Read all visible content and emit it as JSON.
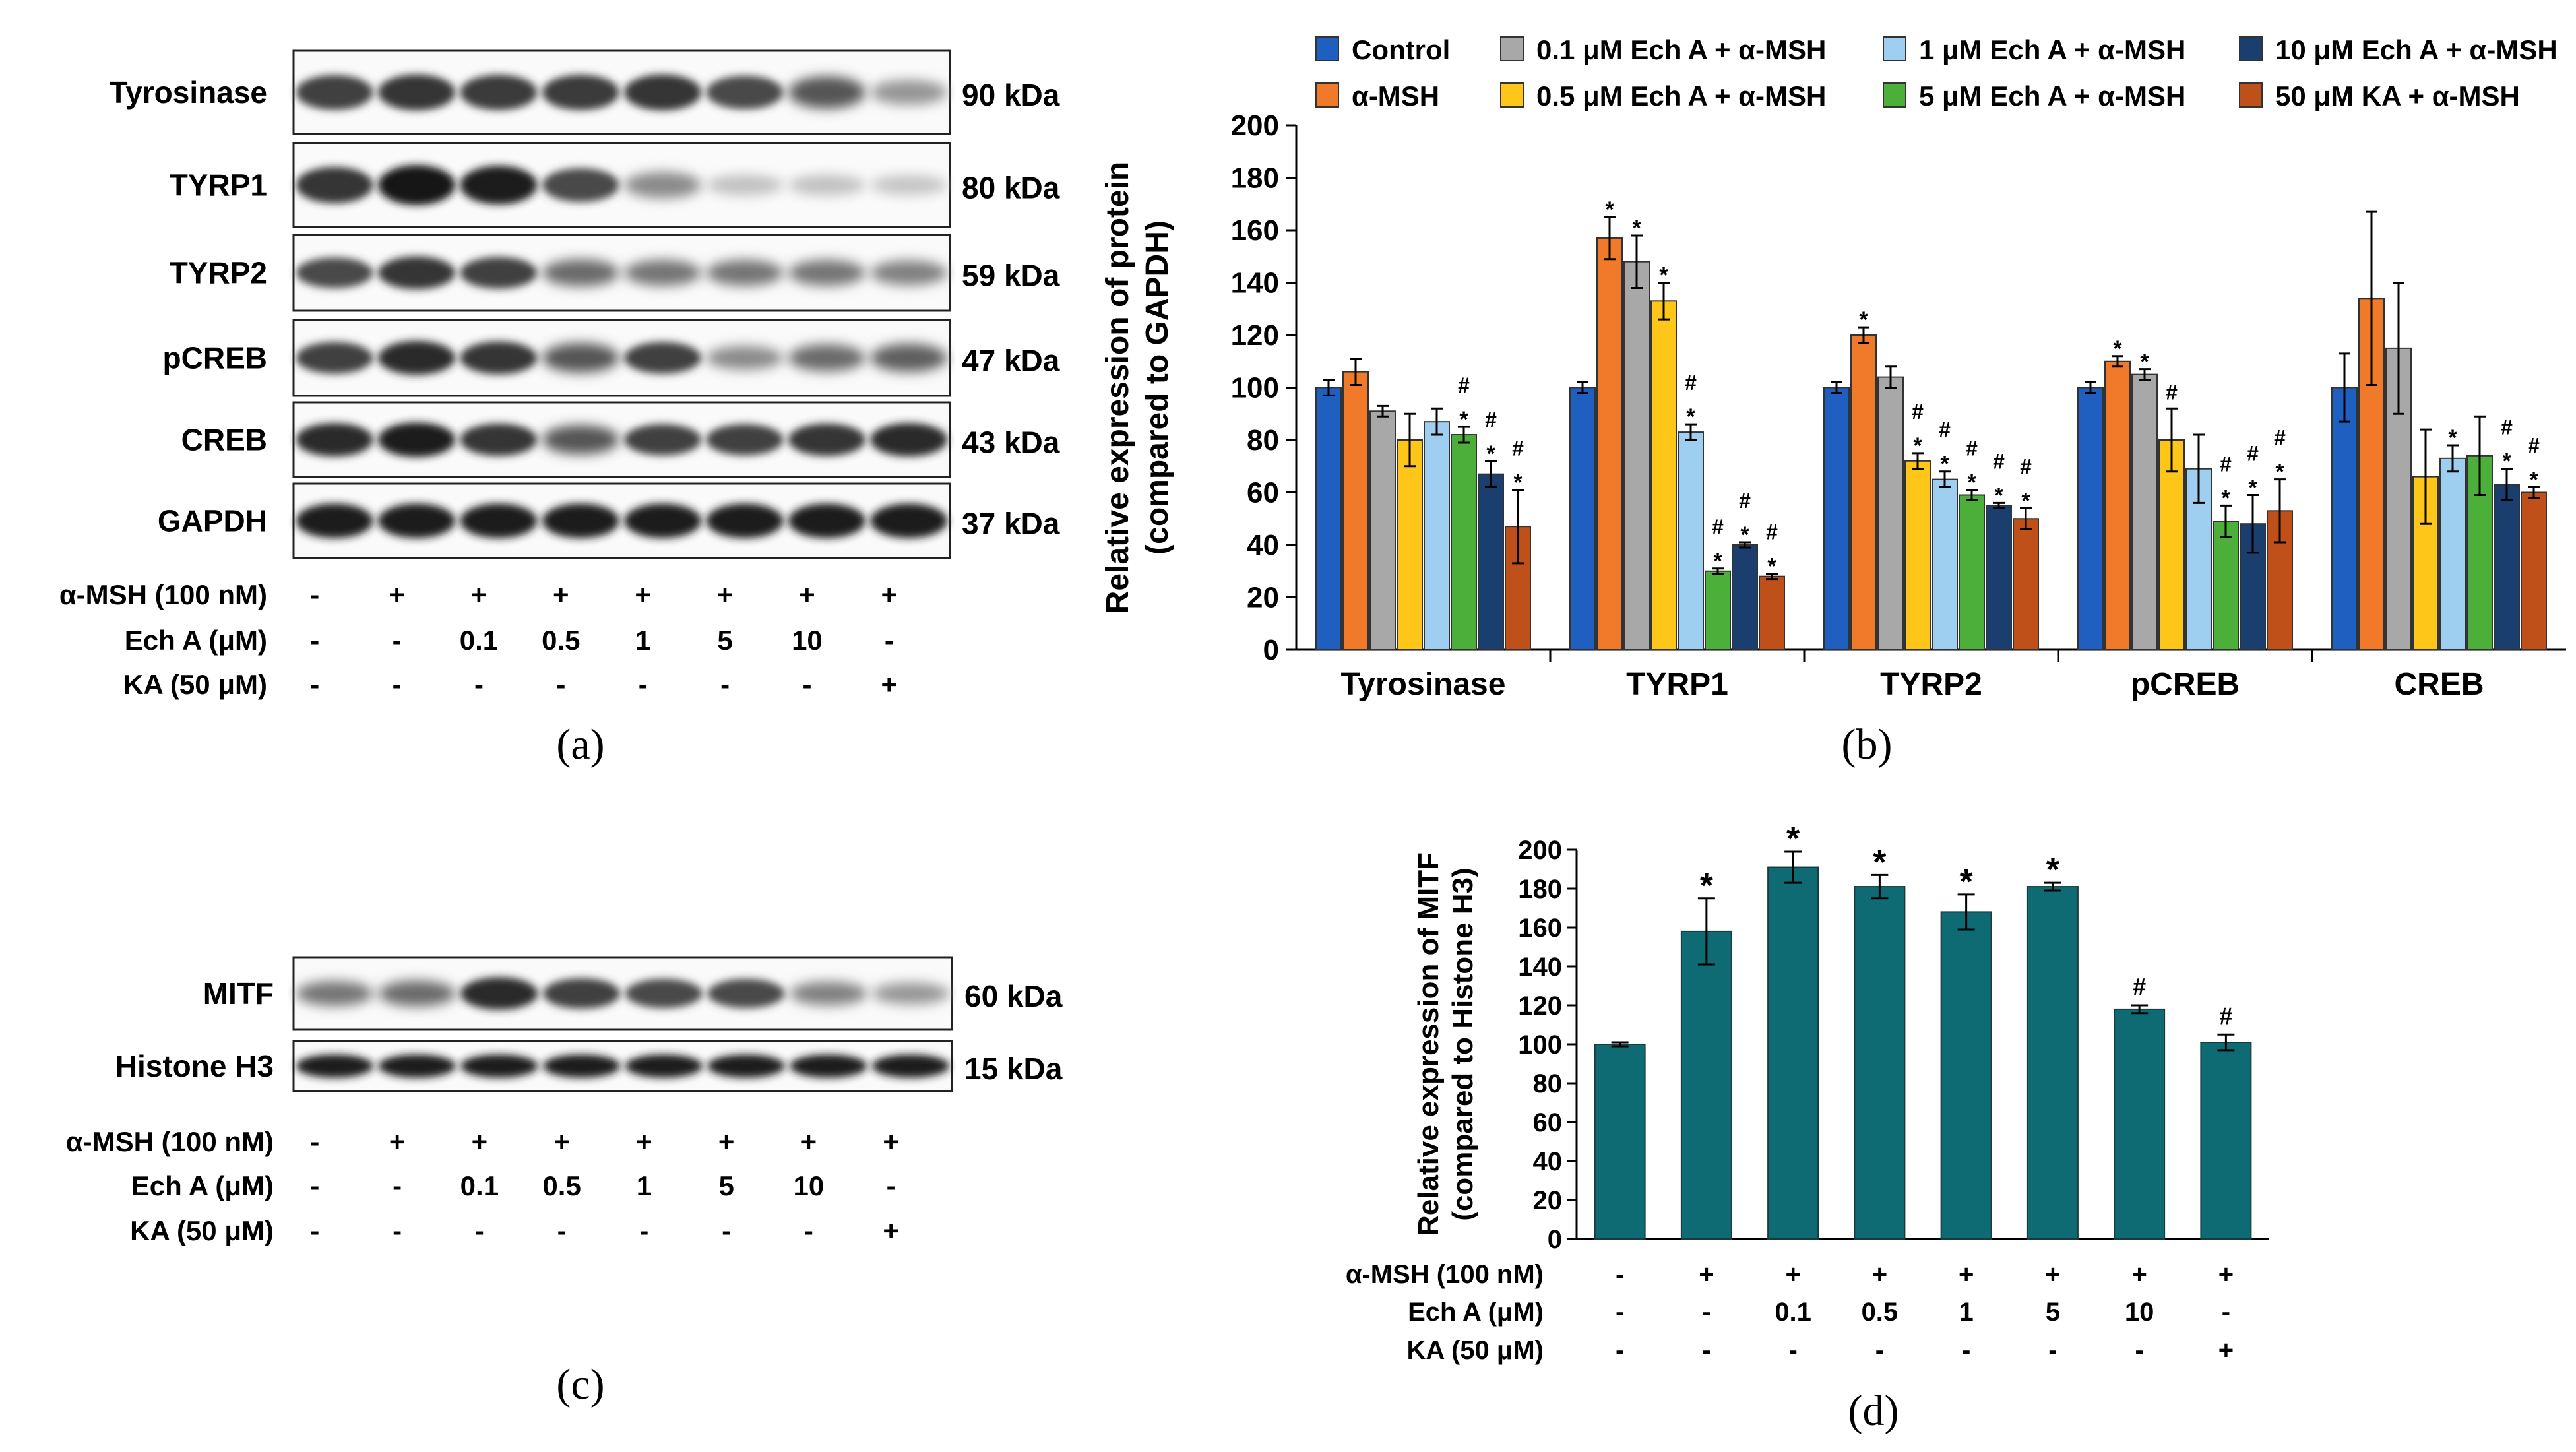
{
  "panel_a": {
    "letter": "(a)",
    "bands": [
      {
        "name": "Tyrosinase",
        "kda": "90 kDa",
        "intensity": [
          0.8,
          0.85,
          0.82,
          0.82,
          0.85,
          0.75,
          0.7,
          0.4
        ]
      },
      {
        "name": "TYRP1",
        "kda": "80 kDa",
        "intensity": [
          0.85,
          1.0,
          0.95,
          0.75,
          0.45,
          0.2,
          0.2,
          0.18
        ]
      },
      {
        "name": "TYRP2",
        "kda": "59 kDa",
        "intensity": [
          0.75,
          0.85,
          0.8,
          0.6,
          0.55,
          0.55,
          0.55,
          0.5
        ]
      },
      {
        "name": "pCREB",
        "kda": "47 kDa",
        "intensity": [
          0.8,
          0.9,
          0.85,
          0.7,
          0.8,
          0.45,
          0.6,
          0.65
        ]
      },
      {
        "name": "CREB",
        "kda": "43 kDa",
        "intensity": [
          0.9,
          0.95,
          0.85,
          0.7,
          0.8,
          0.8,
          0.85,
          0.9
        ]
      },
      {
        "name": "GAPDH",
        "kda": "37 kDa",
        "intensity": [
          0.95,
          0.95,
          0.95,
          0.95,
          0.95,
          0.95,
          0.95,
          0.95
        ]
      }
    ],
    "treatments": [
      {
        "label": "α-MSH (100 nM)",
        "values": [
          "-",
          "+",
          "+",
          "+",
          "+",
          "+",
          "+",
          "+"
        ]
      },
      {
        "label": "Ech A (μM)",
        "values": [
          "-",
          "-",
          "0.1",
          "0.5",
          "1",
          "5",
          "10",
          "-"
        ]
      },
      {
        "label": "KA (50 μM)",
        "values": [
          "-",
          "-",
          "-",
          "-",
          "-",
          "-",
          "-",
          "+"
        ]
      }
    ]
  },
  "panel_c": {
    "letter": "(c)",
    "bands": [
      {
        "name": "MITF",
        "kda": "60 kDa",
        "intensity": [
          0.55,
          0.6,
          0.9,
          0.8,
          0.75,
          0.75,
          0.5,
          0.4
        ]
      },
      {
        "name": "Histone H3",
        "kda": "15 kDa",
        "intensity": [
          0.95,
          0.95,
          0.95,
          0.95,
          0.95,
          0.95,
          0.95,
          0.95
        ]
      }
    ],
    "treatments": [
      {
        "label": "α-MSH (100 nM)",
        "values": [
          "-",
          "+",
          "+",
          "+",
          "+",
          "+",
          "+",
          "+"
        ]
      },
      {
        "label": "Ech A (μM)",
        "values": [
          "-",
          "-",
          "0.1",
          "0.5",
          "1",
          "5",
          "10",
          "-"
        ]
      },
      {
        "label": "KA (50 μM)",
        "values": [
          "-",
          "-",
          "-",
          "-",
          "-",
          "-",
          "-",
          "+"
        ]
      }
    ]
  },
  "chart_data": [
    {
      "type": "bar",
      "panel": "(b)",
      "title": "",
      "xlabel": "",
      "ylabel_line1": "Relative expression of protein",
      "ylabel_line2": "(compared to GAPDH)",
      "ylim": [
        0,
        200
      ],
      "yticks": [
        0,
        20,
        40,
        60,
        80,
        100,
        120,
        140,
        160,
        180,
        200
      ],
      "categories": [
        "Tyrosinase",
        "TYRP1",
        "TYRP2",
        "pCREB",
        "CREB"
      ],
      "legend_position": "top",
      "series": [
        {
          "name": "Control",
          "color": "#1f5fc0",
          "values": [
            100,
            100,
            100,
            100,
            100
          ],
          "errors": [
            3,
            2,
            2,
            2,
            13
          ],
          "marks": [
            "",
            "",
            "",
            "",
            ""
          ]
        },
        {
          "name": "α-MSH",
          "color": "#f07a2a",
          "values": [
            106,
            157,
            120,
            110,
            134
          ],
          "errors": [
            5,
            8,
            3,
            2,
            33
          ],
          "marks": [
            "",
            "*",
            "*",
            "*",
            ""
          ]
        },
        {
          "name": "0.1 μM Ech A + α-MSH",
          "color": "#a8a8a8",
          "values": [
            91,
            148,
            104,
            105,
            115
          ],
          "errors": [
            2,
            10,
            4,
            2,
            25
          ],
          "marks": [
            "",
            "*",
            "",
            "*",
            ""
          ]
        },
        {
          "name": "0.5 μM Ech A + α-MSH",
          "color": "#ffc61a",
          "values": [
            80,
            133,
            72,
            80,
            66
          ],
          "errors": [
            10,
            7,
            3,
            12,
            18
          ],
          "marks": [
            "",
            "*",
            "*#",
            "#",
            ""
          ]
        },
        {
          "name": "1 μM Ech A + α-MSH",
          "color": "#9fcff0",
          "values": [
            87,
            83,
            65,
            69,
            73
          ],
          "errors": [
            5,
            3,
            3,
            13,
            5
          ],
          "marks": [
            "",
            "*#",
            "*#",
            "",
            "*"
          ]
        },
        {
          "name": "5 μM Ech A + α-MSH",
          "color": "#4caf3a",
          "values": [
            82,
            30,
            59,
            49,
            74
          ],
          "errors": [
            3,
            1,
            2,
            6,
            15
          ],
          "marks": [
            "*#",
            "*#",
            "*#",
            "*#",
            ""
          ]
        },
        {
          "name": "10 μM Ech A + α-MSH",
          "color": "#1a3e6e",
          "values": [
            67,
            40,
            55,
            48,
            63
          ],
          "errors": [
            5,
            1,
            1,
            11,
            6
          ],
          "marks": [
            "*#",
            "*#",
            "*#",
            "*#",
            "*#"
          ]
        },
        {
          "name": "50 μM KA + α-MSH",
          "color": "#c0501a",
          "values": [
            47,
            28,
            50,
            53,
            60
          ],
          "errors": [
            14,
            1,
            4,
            12,
            2
          ],
          "marks": [
            "*#",
            "*#",
            "*#",
            "*#",
            "*#"
          ]
        }
      ]
    },
    {
      "type": "bar",
      "panel": "(d)",
      "title": "",
      "xlabel": "",
      "ylabel_line1": "Relative expression of MITF",
      "ylabel_line2": "(compared to Histone H3)",
      "ylim": [
        0,
        200
      ],
      "yticks": [
        0,
        20,
        40,
        60,
        80,
        100,
        120,
        140,
        160,
        180,
        200
      ],
      "color": "#0e6b73",
      "values": [
        100,
        158,
        191,
        181,
        168,
        181,
        118,
        101
      ],
      "errors": [
        1,
        17,
        8,
        6,
        9,
        2,
        2,
        4
      ],
      "marks": [
        "",
        "*",
        "*",
        "*",
        "*",
        "*",
        "#",
        "#"
      ],
      "treatments": [
        {
          "label": "α-MSH (100 nM)",
          "values": [
            "-",
            "+",
            "+",
            "+",
            "+",
            "+",
            "+",
            "+"
          ]
        },
        {
          "label": "Ech A (μM)",
          "values": [
            "-",
            "-",
            "0.1",
            "0.5",
            "1",
            "5",
            "10",
            "-"
          ]
        },
        {
          "label": "KA (50 μM)",
          "values": [
            "-",
            "-",
            "-",
            "-",
            "-",
            "-",
            "-",
            "+"
          ]
        }
      ]
    }
  ]
}
